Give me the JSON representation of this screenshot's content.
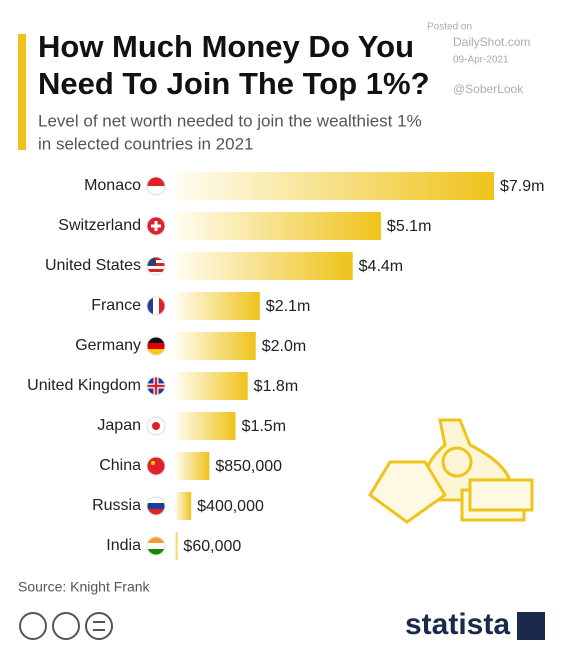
{
  "chart_data": {
    "type": "bar",
    "orientation": "horizontal",
    "title_lines": [
      "How Much Money Do You",
      "Need To Join The Top 1%?"
    ],
    "subtitle_lines": [
      "Level of net worth needed to join the wealthiest 1%",
      "in selected countries in 2021"
    ],
    "categories": [
      "Monaco",
      "Switzerland",
      "United States",
      "France",
      "Germany",
      "United Kingdom",
      "Japan",
      "China",
      "Russia",
      "India"
    ],
    "values": [
      7900000,
      5100000,
      4400000,
      2100000,
      2000000,
      1800000,
      1500000,
      850000,
      400000,
      60000
    ],
    "value_labels": [
      "$7.9m",
      "$5.1m",
      "$4.4m",
      "$2.1m",
      "$2.0m",
      "$1.8m",
      "$1.5m",
      "$850,000",
      "$400,000",
      "$60,000"
    ],
    "color": "#efc31a",
    "source": "Source: Knight Frank",
    "brand": "statista",
    "watermark": [
      "Posted on",
      "DailyShot.com",
      "09-Apr-2021",
      "@SoberLook"
    ]
  }
}
